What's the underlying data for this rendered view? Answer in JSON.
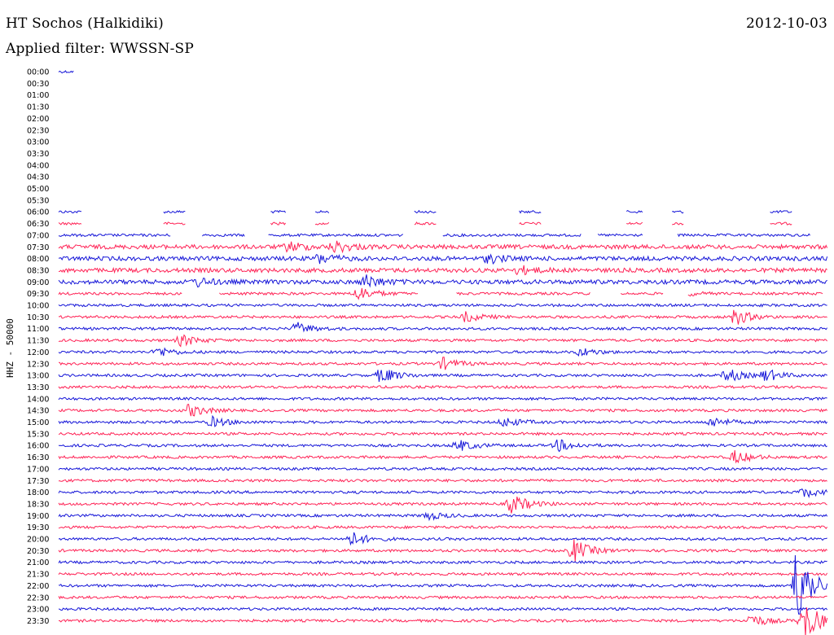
{
  "header": {
    "station": "HT Sochos (Halkidiki)",
    "date": "2012-10-03",
    "filter_label": "Applied filter:",
    "filter_value": "WWSSN-SP"
  },
  "channel_label": "HHZ - 50000",
  "colors": {
    "odd_rows": "#ff2255",
    "even_rows": "#1515d8",
    "background": "#ffffff"
  },
  "chart_data": {
    "type": "helicorder",
    "title": "HT Sochos (Halkidiki)",
    "ylabel": "HHZ - 50000",
    "row_interval_minutes": 30,
    "rows": [
      {
        "time": "00:00",
        "level": "gap",
        "data_until": 0.02
      },
      {
        "time": "00:30",
        "level": "none"
      },
      {
        "time": "01:00",
        "level": "none"
      },
      {
        "time": "01:30",
        "level": "none"
      },
      {
        "time": "02:00",
        "level": "none"
      },
      {
        "time": "02:30",
        "level": "none"
      },
      {
        "time": "03:00",
        "level": "none"
      },
      {
        "time": "03:30",
        "level": "none"
      },
      {
        "time": "04:00",
        "level": "none"
      },
      {
        "time": "04:30",
        "level": "none"
      },
      {
        "time": "05:00",
        "level": "none"
      },
      {
        "time": "05:30",
        "level": "none"
      },
      {
        "time": "06:00",
        "level": "sparse"
      },
      {
        "time": "06:30",
        "level": "sparse"
      },
      {
        "time": "07:00",
        "level": "partial"
      },
      {
        "time": "07:30",
        "level": "noisy"
      },
      {
        "time": "08:00",
        "level": "noisy"
      },
      {
        "time": "08:30",
        "level": "noisy"
      },
      {
        "time": "09:00",
        "level": "noisy"
      },
      {
        "time": "09:30",
        "level": "partial"
      },
      {
        "time": "10:00",
        "level": "continuous"
      },
      {
        "time": "10:30",
        "level": "continuous"
      },
      {
        "time": "11:00",
        "level": "continuous"
      },
      {
        "time": "11:30",
        "level": "continuous"
      },
      {
        "time": "12:00",
        "level": "continuous"
      },
      {
        "time": "12:30",
        "level": "continuous"
      },
      {
        "time": "13:00",
        "level": "continuous"
      },
      {
        "time": "13:30",
        "level": "continuous"
      },
      {
        "time": "14:00",
        "level": "continuous"
      },
      {
        "time": "14:30",
        "level": "continuous"
      },
      {
        "time": "15:00",
        "level": "continuous"
      },
      {
        "time": "15:30",
        "level": "continuous"
      },
      {
        "time": "16:00",
        "level": "continuous"
      },
      {
        "time": "16:30",
        "level": "continuous"
      },
      {
        "time": "17:00",
        "level": "continuous"
      },
      {
        "time": "17:30",
        "level": "continuous"
      },
      {
        "time": "18:00",
        "level": "continuous"
      },
      {
        "time": "18:30",
        "level": "continuous"
      },
      {
        "time": "19:00",
        "level": "continuous"
      },
      {
        "time": "19:30",
        "level": "continuous"
      },
      {
        "time": "20:00",
        "level": "continuous"
      },
      {
        "time": "20:30",
        "level": "continuous"
      },
      {
        "time": "21:00",
        "level": "continuous"
      },
      {
        "time": "21:30",
        "level": "continuous"
      },
      {
        "time": "22:00",
        "level": "continuous"
      },
      {
        "time": "22:30",
        "level": "continuous"
      },
      {
        "time": "23:00",
        "level": "continuous"
      },
      {
        "time": "23:30",
        "level": "continuous"
      }
    ],
    "events": [
      {
        "time": "07:30",
        "at": 0.3,
        "amp": 6
      },
      {
        "time": "07:30",
        "at": 0.36,
        "amp": 7
      },
      {
        "time": "08:00",
        "at": 0.34,
        "amp": 6
      },
      {
        "time": "08:00",
        "at": 0.56,
        "amp": 5
      },
      {
        "time": "08:30",
        "at": 0.6,
        "amp": 5
      },
      {
        "time": "09:00",
        "at": 0.18,
        "amp": 5
      },
      {
        "time": "09:00",
        "at": 0.4,
        "amp": 8
      },
      {
        "time": "09:30",
        "at": 0.39,
        "amp": 9
      },
      {
        "time": "09:30",
        "at": 0.8,
        "amp": 6
      },
      {
        "time": "10:30",
        "at": 0.53,
        "amp": 6
      },
      {
        "time": "10:30",
        "at": 0.88,
        "amp": 10
      },
      {
        "time": "11:00",
        "at": 0.31,
        "amp": 7
      },
      {
        "time": "11:30",
        "at": 0.16,
        "amp": 7
      },
      {
        "time": "12:00",
        "at": 0.13,
        "amp": 6
      },
      {
        "time": "12:00",
        "at": 0.68,
        "amp": 5
      },
      {
        "time": "12:30",
        "at": 0.5,
        "amp": 7
      },
      {
        "time": "13:00",
        "at": 0.42,
        "amp": 10
      },
      {
        "time": "13:00",
        "at": 0.87,
        "amp": 8
      },
      {
        "time": "13:00",
        "at": 0.92,
        "amp": 7
      },
      {
        "time": "14:30",
        "at": 0.17,
        "amp": 8
      },
      {
        "time": "15:00",
        "at": 0.2,
        "amp": 6
      },
      {
        "time": "15:00",
        "at": 0.58,
        "amp": 6
      },
      {
        "time": "15:00",
        "at": 0.85,
        "amp": 6
      },
      {
        "time": "16:00",
        "at": 0.52,
        "amp": 7
      },
      {
        "time": "16:00",
        "at": 0.65,
        "amp": 7
      },
      {
        "time": "16:30",
        "at": 0.88,
        "amp": 8
      },
      {
        "time": "18:00",
        "at": 0.97,
        "amp": 6
      },
      {
        "time": "18:30",
        "at": 0.59,
        "amp": 12
      },
      {
        "time": "19:00",
        "at": 0.48,
        "amp": 5
      },
      {
        "time": "20:00",
        "at": 0.38,
        "amp": 9
      },
      {
        "time": "20:30",
        "at": 0.67,
        "amp": 14
      },
      {
        "time": "22:00",
        "at": 0.96,
        "amp": 50
      },
      {
        "time": "23:30",
        "at": 0.9,
        "amp": 8
      },
      {
        "time": "23:30",
        "at": 0.97,
        "amp": 25
      }
    ]
  }
}
